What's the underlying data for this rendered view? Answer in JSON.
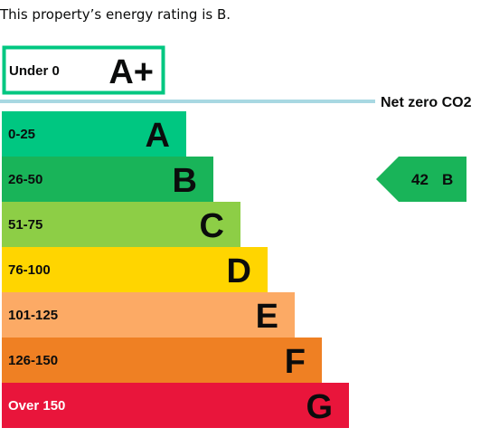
{
  "summary": {
    "text": "This property’s energy rating is B."
  },
  "chart_data": {
    "type": "bar",
    "title": "",
    "categories": [
      "Under 0",
      "0-25",
      "26-50",
      "51-75",
      "76-100",
      "101-125",
      "126-150",
      "Over 150"
    ],
    "bands": [
      {
        "range": "Under 0",
        "letter": "A+",
        "color": "#ffffff",
        "border": "#00c781",
        "level": 0
      },
      {
        "range": "0-25",
        "letter": "A",
        "color": "#00c781",
        "level": 1
      },
      {
        "range": "26-50",
        "letter": "B",
        "color": "#19b459",
        "level": 2
      },
      {
        "range": "51-75",
        "letter": "C",
        "color": "#8dce46",
        "level": 3
      },
      {
        "range": "76-100",
        "letter": "D",
        "color": "#ffd500",
        "level": 4
      },
      {
        "range": "101-125",
        "letter": "E",
        "color": "#fcaa65",
        "level": 5
      },
      {
        "range": "126-150",
        "letter": "F",
        "color": "#ef8023",
        "level": 6
      },
      {
        "range": "Over 150",
        "letter": "G",
        "color": "#e9153b",
        "level": 7
      }
    ],
    "net_zero": {
      "label": "Net zero CO2",
      "line_color": "#a8d8e2"
    },
    "current_rating": {
      "value": 42,
      "letter": "B",
      "color": "#19b459"
    }
  }
}
